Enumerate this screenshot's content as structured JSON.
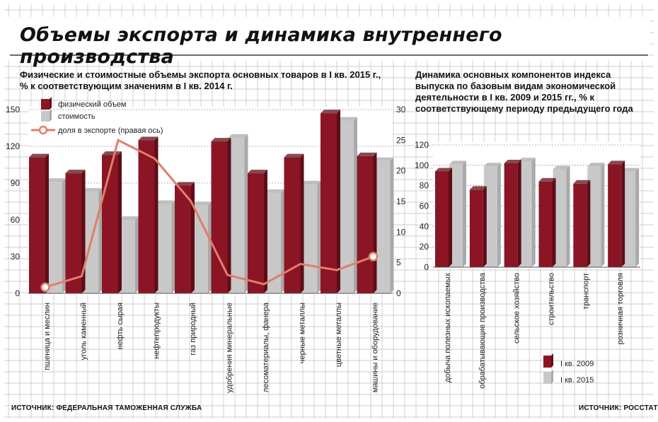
{
  "title": "Объемы экспорта и динамика внутреннего производства",
  "colors": {
    "physical": "#8b1524",
    "value": "#c8c8c8",
    "share": "#e07e6a",
    "grid": "#bdbdbd"
  },
  "sources": {
    "left": "ИСТОЧНИК: ФЕДЕРАЛЬНАЯ ТАМОЖЕННАЯ СЛУЖБА",
    "right": "ИСТОЧНИК: РОССТАТ"
  },
  "chart_data": [
    {
      "type": "bar",
      "title": "Физические и стоимостные объемы экспорта основных товаров в I кв. 2015 г., % к соответствующим значениям в I кв. 2014 г.",
      "categories": [
        "пшеница и меслин",
        "уголь каменный",
        "нефть сырая",
        "нефтепродукты",
        "газ природный",
        "удобрения минеральные",
        "лесоматериалы, фанера",
        "черные металлы",
        "цветные металлы",
        "машины и оборудование"
      ],
      "series": [
        {
          "name": "физический объем",
          "type": "bar",
          "axis": "left",
          "values": [
            111,
            98,
            113,
            125,
            88,
            124,
            98,
            111,
            147,
            112
          ]
        },
        {
          "name": "стоимость",
          "type": "bar",
          "axis": "left",
          "values": [
            91,
            83,
            60,
            73,
            72,
            127,
            82,
            89,
            141,
            108
          ]
        },
        {
          "name": "доля в экспорте (правая ось)",
          "type": "line",
          "axis": "right",
          "values": [
            1,
            2.8,
            25,
            22,
            15,
            3,
            1.5,
            4.8,
            3.8,
            6
          ]
        }
      ],
      "ylim": [
        0,
        150
      ],
      "yticks": [
        "150",
        "120",
        "90",
        "60",
        "30",
        "0"
      ],
      "y2lim": [
        0,
        30
      ],
      "y2ticks": [
        "30",
        "25",
        "20",
        "15",
        "10",
        "5",
        "0"
      ],
      "legend": "top-left"
    },
    {
      "type": "bar",
      "title": "Динамика основных компонентов индекса выпуска по базовым видам экономической деятельности в I кв. 2009 и 2015 гг., % к соответствующему периоду предыдущего года",
      "categories": [
        "добыча полезных ископаемых",
        "обрабатывающие производства",
        "сельское хозяйство",
        "строительство",
        "транспорт",
        "розничная торговля"
      ],
      "series": [
        {
          "name": "I кв. 2009",
          "values": [
            94,
            76,
            102,
            84,
            82,
            101
          ]
        },
        {
          "name": "I кв. 2015",
          "values": [
            101,
            99,
            104,
            96,
            99,
            94
          ]
        }
      ],
      "ylim": [
        0,
        120
      ],
      "yticks": [
        "120",
        "100",
        "80",
        "60",
        "40",
        "20",
        "0"
      ],
      "legend": "bottom"
    }
  ]
}
